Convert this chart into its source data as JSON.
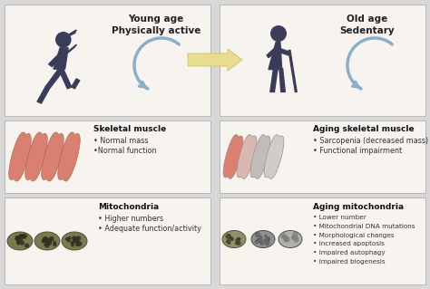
{
  "bg_color": "#d8d8d8",
  "panel_bg": "#f7f4f0",
  "panel_border": "#bbbbbb",
  "arrow_color": "#e8dc90",
  "arrow_edge": "#d4c870",
  "title_left": "Young age\nPhysically active",
  "title_right": "Old age\nSedentary",
  "muscle_title_left": "Skeletal muscle",
  "muscle_bullets_left": [
    "• Normal mass",
    "•Normal function"
  ],
  "muscle_title_right": "Aging skeletal muscle",
  "muscle_bullets_right": [
    "• Sarcopenia (decreased mass)",
    "• Functional impairment"
  ],
  "mito_title_left": "Mitochondria",
  "mito_bullets_left": [
    "• Higher numbers",
    "• Adequate function/activity"
  ],
  "mito_title_right": "Aging mitochondria",
  "mito_bullets_right": [
    "• Lower number",
    "• Mitochondrial DNA mutations",
    "• Morphological changes",
    "• Increased apoptosis",
    "• Impaired autophagy",
    "• Impaired biogenesis"
  ],
  "muscle_color_pink": "#d98070",
  "muscle_color_light_pink": "#e8a090",
  "muscle_color_gray": "#c0bcb8",
  "mito_color_olive": "#7a7a50",
  "mito_color_olive2": "#909068",
  "mito_color_gray": "#b0b0a8",
  "figure_color": "#3a3c5a",
  "curl_arrow_color": "#8ab0c8",
  "curl_arrow_light": "#a8c8d8"
}
